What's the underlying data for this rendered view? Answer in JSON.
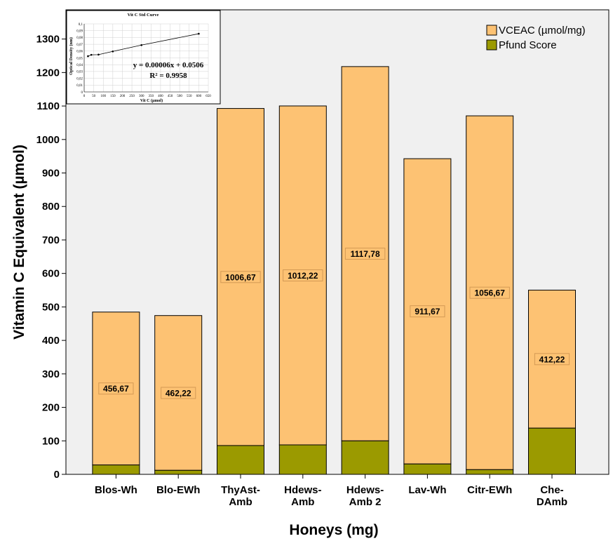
{
  "chart_data": {
    "type": "bar",
    "stacked": true,
    "xlabel": "Honeys (mg)",
    "ylabel": "Vitamin C Equivalent (µmol)",
    "ylim": [
      0,
      1350
    ],
    "yticks": [
      0,
      100,
      200,
      300,
      400,
      500,
      600,
      700,
      800,
      900,
      1000,
      1100,
      1200,
      1300
    ],
    "categories": [
      [
        "Blos-Wh"
      ],
      [
        "Blo-EWh"
      ],
      [
        "ThyAst-",
        "Amb"
      ],
      [
        "Hdews-",
        "Amb"
      ],
      [
        "Hdews-",
        "Amb 2"
      ],
      [
        "Lav-Wh"
      ],
      [
        "Citr-EWh"
      ],
      [
        "Che-",
        "DAmb"
      ]
    ],
    "series": [
      {
        "name": "Pfund Score",
        "color": "#9b9a00",
        "values": [
          28,
          12,
          86,
          88,
          100,
          31,
          14,
          138
        ]
      },
      {
        "name": "VCEAC (µmol/mg)",
        "color": "#fdc273",
        "values": [
          456.67,
          462.22,
          1006.67,
          1012.22,
          1117.78,
          911.67,
          1056.67,
          412.22
        ],
        "labels": [
          "456,67",
          "462,22",
          "1006,67",
          "1012,22",
          "1117,78",
          "911,67",
          "1056,67",
          "412,22"
        ]
      }
    ],
    "legend": {
      "position": "top-right",
      "items": [
        "VCEAC (µmol/mg)",
        "Pfund Score"
      ]
    },
    "grid": false,
    "background": "#f0f0f0",
    "inset": {
      "type": "line",
      "title": "Vit C Std Curve",
      "xlabel": "Vit C (µmol)",
      "ylabel": "Optical Density (nm)",
      "equation": "y = 0.00006x + 0.0506",
      "r2": "R² = 0.9958",
      "xticks": [
        0,
        50,
        100,
        150,
        200,
        250,
        300,
        350,
        400,
        450,
        500,
        550,
        600,
        650
      ],
      "yticks": [
        "0",
        "0,01",
        "0,02",
        "0,03",
        "0,04",
        "0,05",
        "0,06",
        "0,07",
        "0,08",
        "0,09",
        "0,1"
      ],
      "xlim": [
        0,
        650
      ],
      "ylim": [
        0,
        0.1
      ],
      "x": [
        20,
        37.5,
        75,
        150,
        300,
        600
      ],
      "y": [
        0.0525,
        0.0545,
        0.0548,
        0.0595,
        0.0688,
        0.0855
      ]
    }
  }
}
